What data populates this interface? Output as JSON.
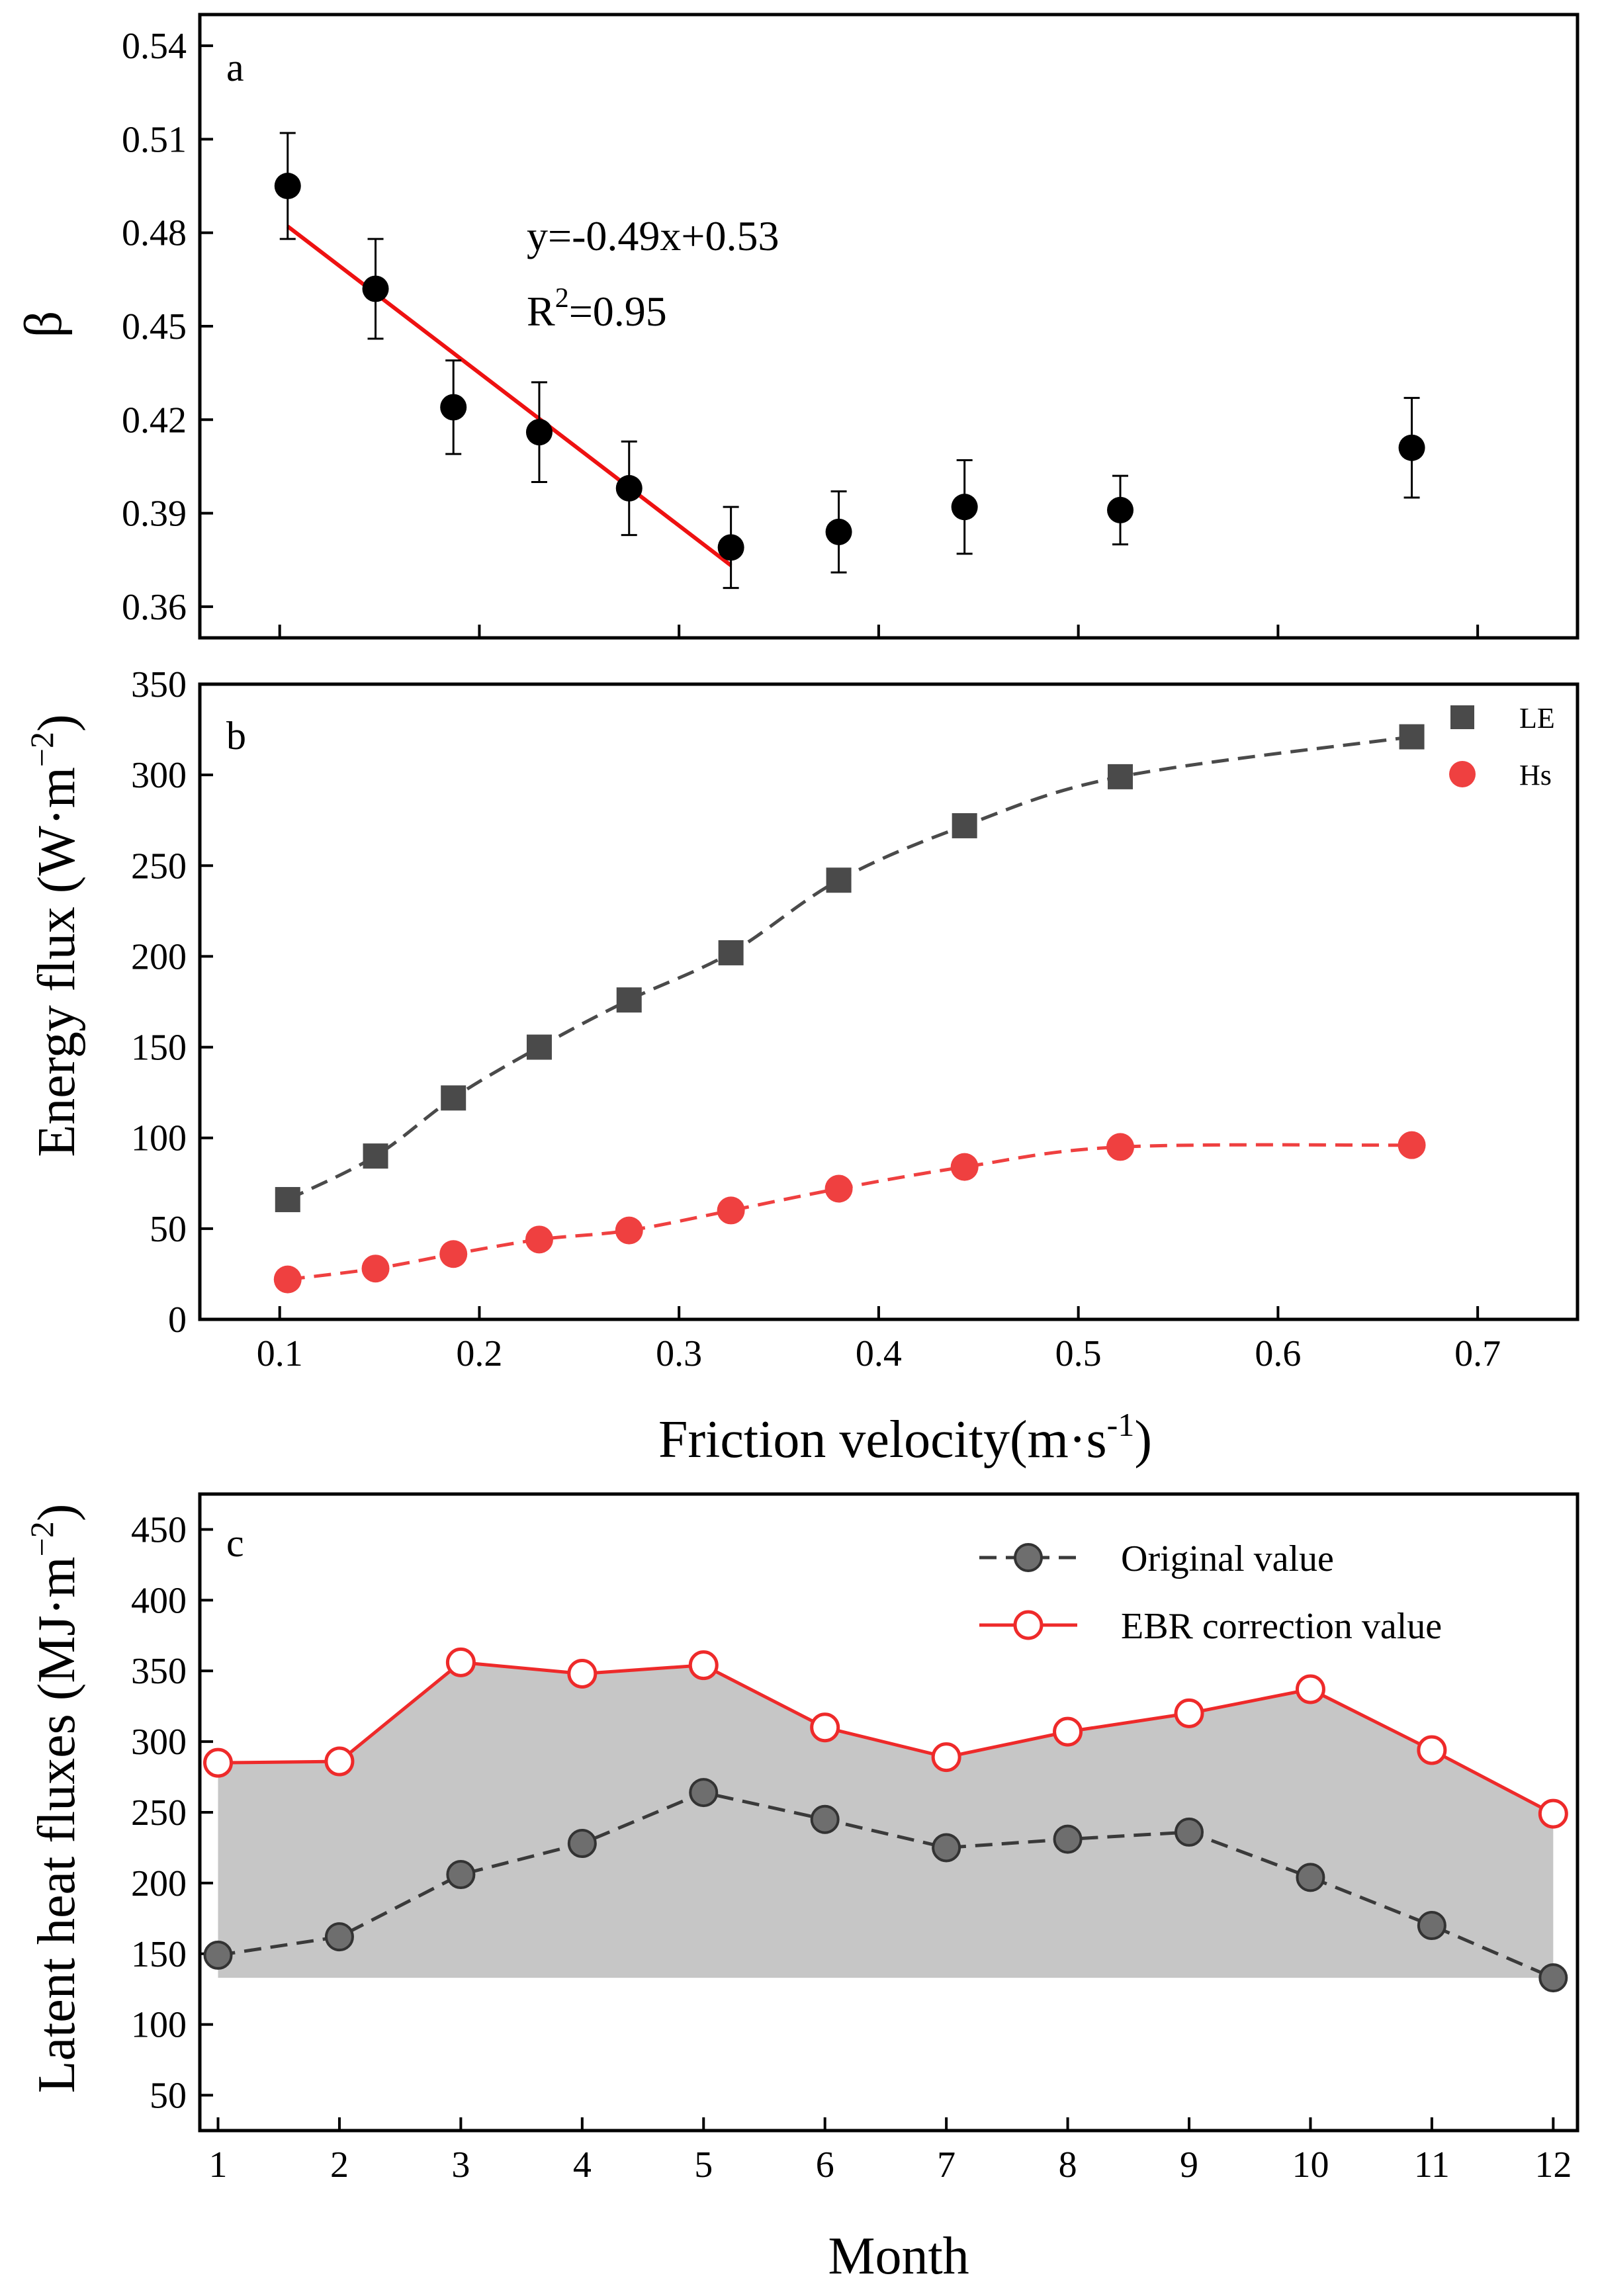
{
  "colors": {
    "black_marker": "#000000",
    "fit_line": "#ee1111",
    "le_marker": "#4a4a4a",
    "hs_marker": "#ef4040",
    "original_marker": "#6e6e6e",
    "ebr_line": "#ee2a2a",
    "shade": "#c6c6c6"
  },
  "chart_data": [
    {
      "panel": "a",
      "type": "scatter",
      "ylabel": "β",
      "xlabel": "",
      "xlim": [
        0.06,
        0.75
      ],
      "ylim": [
        0.35,
        0.55
      ],
      "y_ticks": [
        0.36,
        0.39,
        0.42,
        0.45,
        0.48,
        0.51,
        0.54
      ],
      "y_tick_labels": [
        "0.36",
        "0.39",
        "0.42",
        "0.45",
        "0.48",
        "0.51",
        "0.54"
      ],
      "x_ticks": [
        0.1,
        0.2,
        0.3,
        0.4,
        0.5,
        0.6,
        0.7
      ],
      "points": [
        {
          "x": 0.104,
          "y": 0.495,
          "err": 0.017
        },
        {
          "x": 0.148,
          "y": 0.462,
          "err": 0.016
        },
        {
          "x": 0.187,
          "y": 0.424,
          "err": 0.015
        },
        {
          "x": 0.23,
          "y": 0.416,
          "err": 0.016
        },
        {
          "x": 0.275,
          "y": 0.398,
          "err": 0.015
        },
        {
          "x": 0.326,
          "y": 0.379,
          "err": 0.013
        },
        {
          "x": 0.38,
          "y": 0.384,
          "err": 0.013
        },
        {
          "x": 0.443,
          "y": 0.392,
          "err": 0.015
        },
        {
          "x": 0.521,
          "y": 0.391,
          "err": 0.011
        },
        {
          "x": 0.667,
          "y": 0.411,
          "err": 0.016
        }
      ],
      "fit": {
        "x": [
          0.104,
          0.326
        ],
        "slope": -0.49,
        "intercept": 0.533
      },
      "annotation_equation": "y=-0.49x+0.53",
      "annotation_r2_prefix": "R",
      "annotation_r2_sup": "2",
      "annotation_r2_suffix": "=0.95"
    },
    {
      "panel": "b",
      "type": "scatter",
      "xlabel_main": "Friction velocity(m·s",
      "xlabel_sup": "-1",
      "xlabel_end": ")",
      "ylabel_main": "Energy flux (W·m",
      "ylabel_sup": "−2",
      "ylabel_end": ")",
      "xlim": [
        0.06,
        0.75
      ],
      "ylim": [
        0,
        350
      ],
      "x_ticks": [
        0.1,
        0.2,
        0.3,
        0.4,
        0.5,
        0.6,
        0.7
      ],
      "x_tick_labels": [
        "0.1",
        "0.2",
        "0.3",
        "0.4",
        "0.5",
        "0.6",
        "0.7"
      ],
      "y_ticks": [
        0,
        50,
        100,
        150,
        200,
        250,
        300,
        350
      ],
      "y_tick_labels": [
        "0",
        "50",
        "100",
        "150",
        "200",
        "250",
        "300",
        "350"
      ],
      "x": [
        0.104,
        0.148,
        0.187,
        0.23,
        0.275,
        0.326,
        0.38,
        0.443,
        0.521,
        0.667
      ],
      "series": [
        {
          "name": "LE",
          "marker": "square",
          "values": [
            66,
            90,
            122,
            150,
            176,
            202,
            242,
            272,
            299,
            321
          ]
        },
        {
          "name": "Hs",
          "marker": "circle",
          "values": [
            22,
            28,
            36,
            44,
            49,
            60,
            72,
            84,
            95,
            96
          ]
        }
      ],
      "legend_position": "top-right"
    },
    {
      "panel": "c",
      "type": "line",
      "xlabel": "Month",
      "ylabel_main": "Latent heat fluxes (MJ·m",
      "ylabel_sup": "−2",
      "ylabel_end": ")",
      "xlim": [
        0.85,
        12.2
      ],
      "ylim": [
        25,
        475
      ],
      "categories": [
        1,
        2,
        3,
        4,
        5,
        6,
        7,
        8,
        9,
        10,
        11,
        12
      ],
      "x_tick_labels": [
        "1",
        "2",
        "3",
        "4",
        "5",
        "6",
        "7",
        "8",
        "9",
        "10",
        "11",
        "12"
      ],
      "y_ticks": [
        50,
        100,
        150,
        200,
        250,
        300,
        350,
        400,
        450
      ],
      "y_tick_labels": [
        "50",
        "100",
        "150",
        "200",
        "250",
        "300",
        "350",
        "400",
        "450"
      ],
      "series": [
        {
          "name": "Original value",
          "values": [
            149,
            162,
            206,
            228,
            264,
            245,
            225,
            231,
            236,
            204,
            170,
            133
          ]
        },
        {
          "name": "EBR correction value",
          "values": [
            285,
            286,
            356,
            348,
            354,
            310,
            289,
            307,
            320,
            337,
            294,
            249
          ]
        }
      ],
      "shaded_between_series": true,
      "legend_position": "top-right"
    }
  ]
}
